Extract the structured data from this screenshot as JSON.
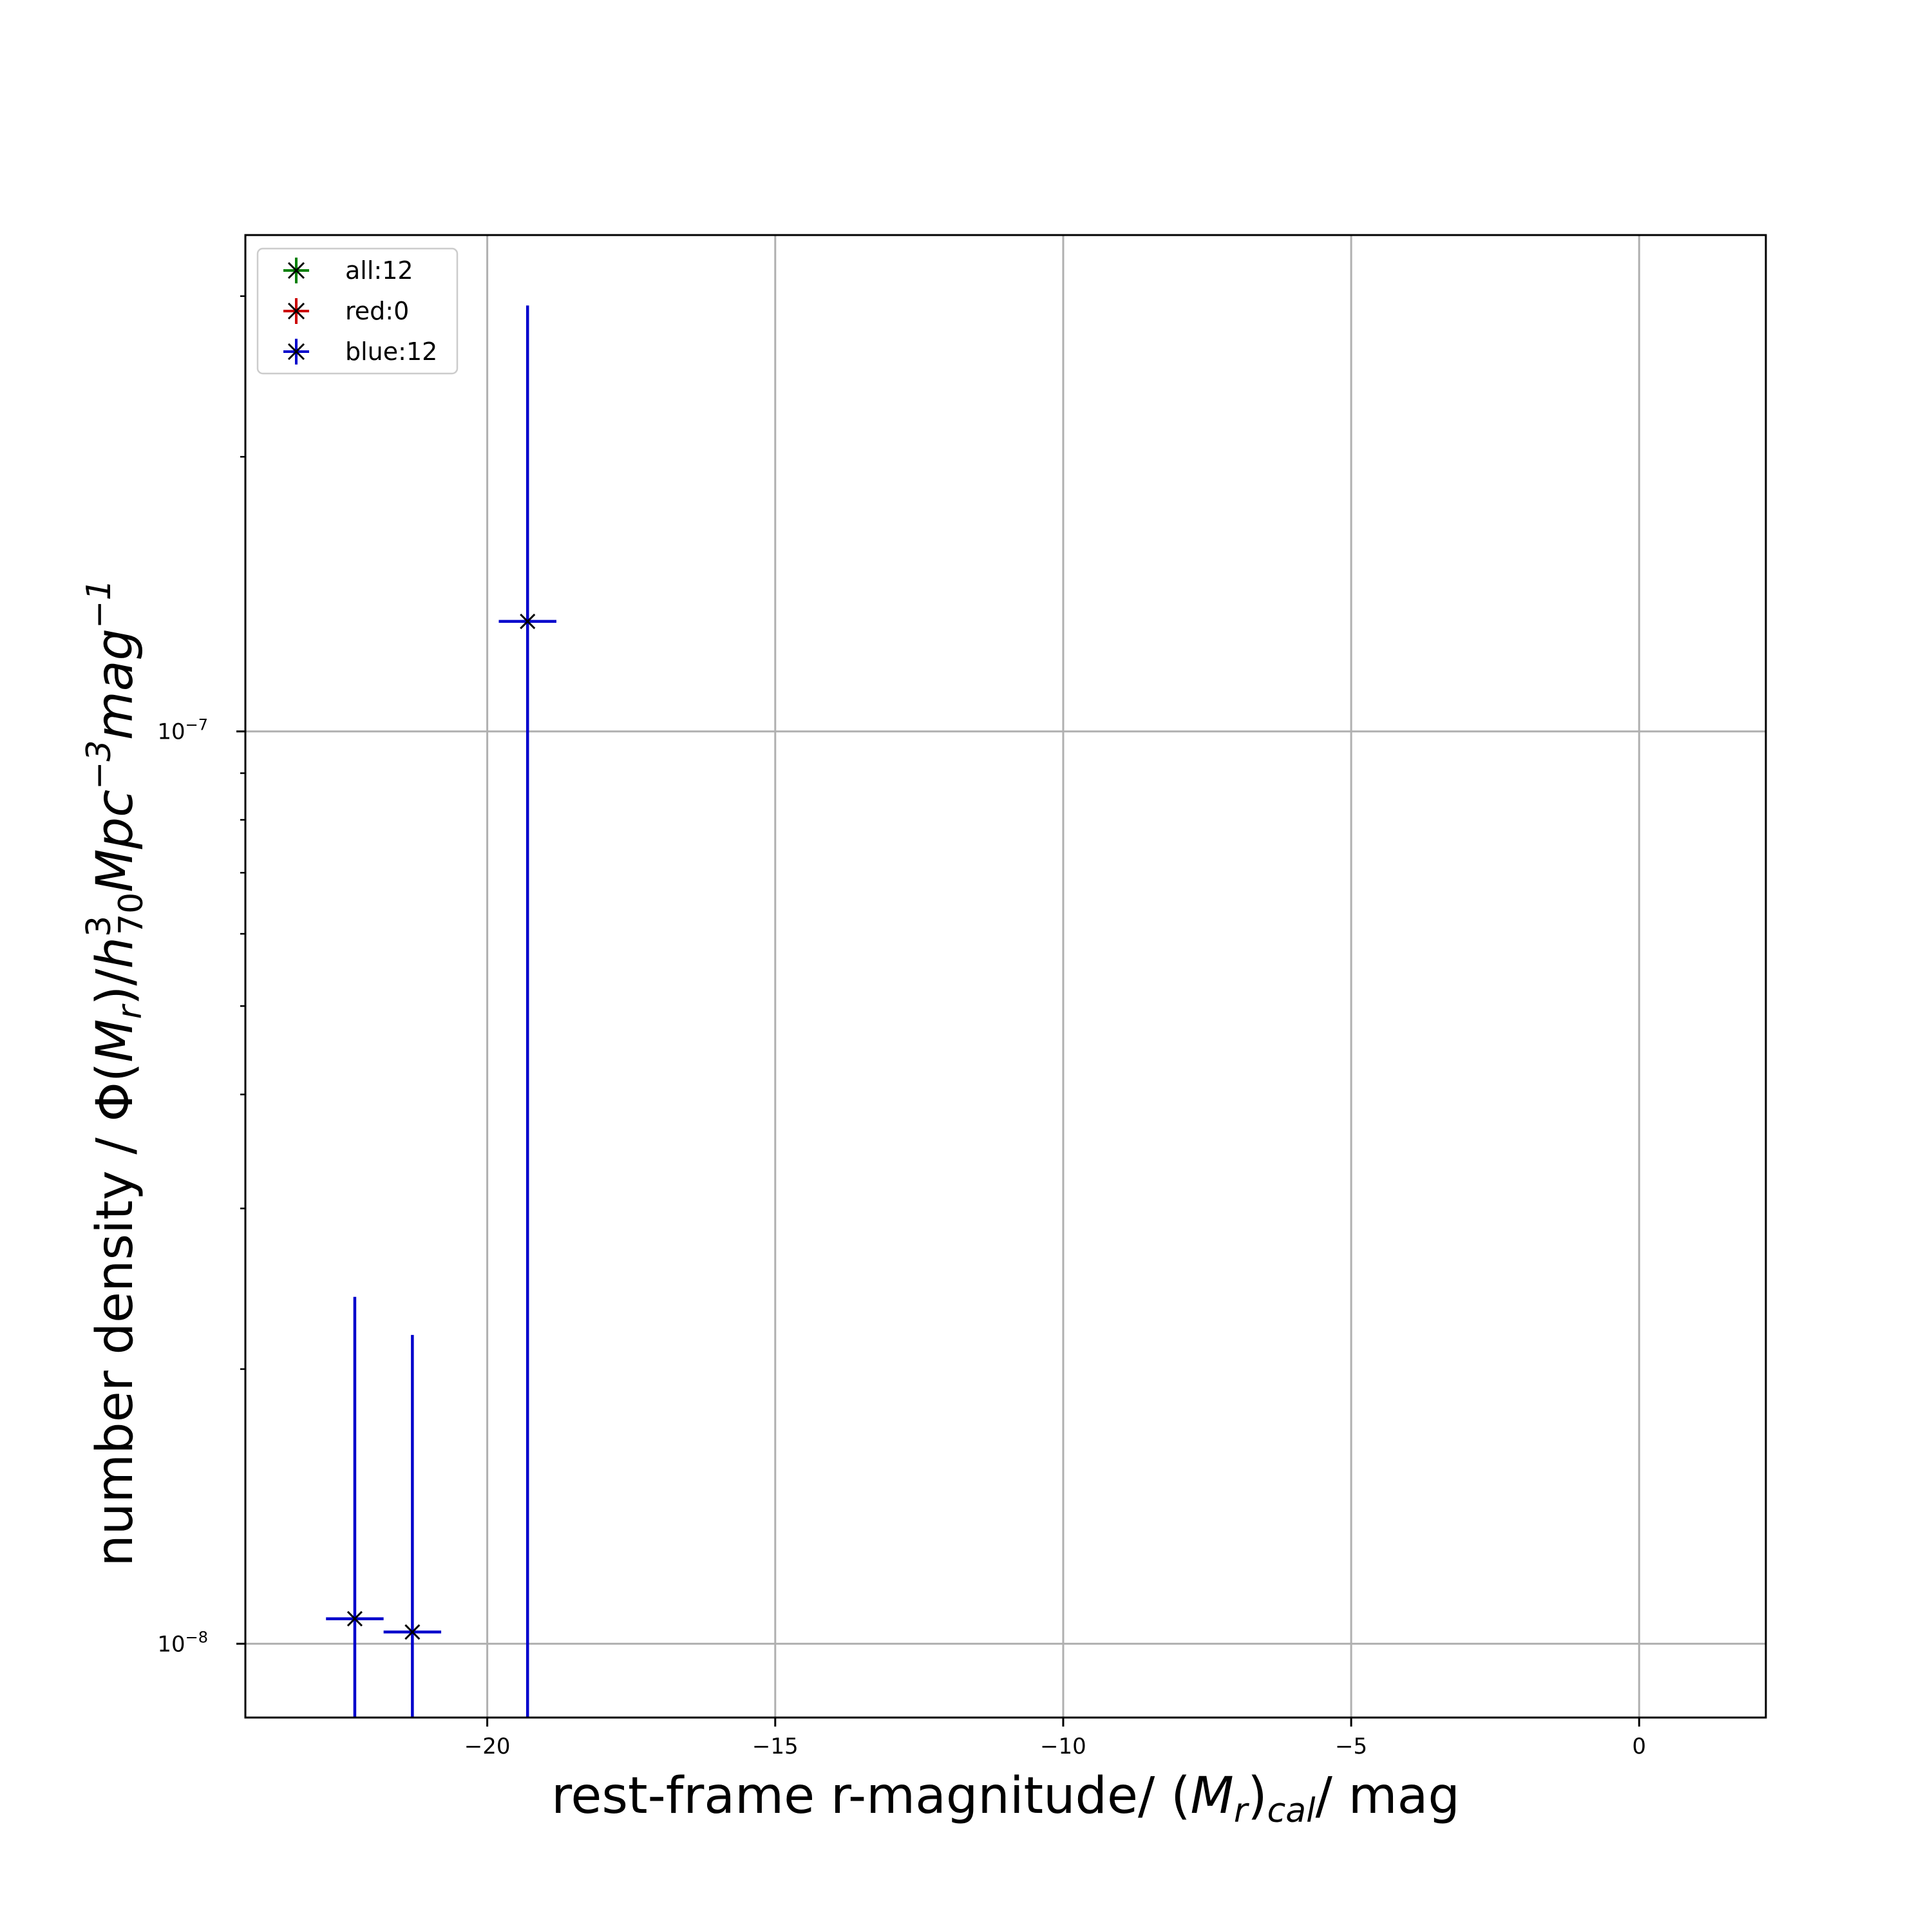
{
  "chart_data": {
    "type": "scatter",
    "title": "",
    "xlabel": {
      "prefix": "rest-frame r-magnitude/ (",
      "main": "M",
      "sub1": "r",
      "mid": ")",
      "sub2": "cal",
      "suffix": "/ mag"
    },
    "ylabel": {
      "prefix": "number density / Φ(",
      "m": "M",
      "m_sub": "r",
      "mid": ")/",
      "h": "h",
      "h_sup": "3",
      "h_sub": "70",
      "mpc": "Mpc",
      "mpc_sup": "−3",
      "mag": "mag",
      "mag_sup": "−1"
    },
    "xlim": [
      -24.2,
      2.2
    ],
    "ylim": [
      8.3e-09,
      3.5e-07
    ],
    "yscale": "log",
    "grid": true,
    "x_ticks": [
      -20,
      -15,
      -10,
      -5,
      0
    ],
    "x_tick_labels": [
      "−20",
      "−15",
      "−10",
      "−5",
      "0"
    ],
    "y_ticks": [
      1e-08,
      1e-07
    ],
    "y_tick_labels": [
      {
        "base": "10",
        "exp": "−8"
      },
      {
        "base": "10",
        "exp": "−7"
      }
    ],
    "y_minor_ticks": [
      2e-08,
      3e-08,
      4e-08,
      5e-08,
      6e-08,
      7e-08,
      8e-08,
      9e-08,
      2e-07,
      3e-07
    ],
    "legend_position": "top-left",
    "series": [
      {
        "name": "all:12",
        "color": "#008000",
        "points": []
      },
      {
        "name": "red:0",
        "color": "#cc0000",
        "points": []
      },
      {
        "name": "blue:12",
        "color": "#0000cc",
        "marker_color": "#000000",
        "points": [
          {
            "x": -22.3,
            "y": 1.065e-08,
            "xerr": 0.5,
            "ylow": 8.3e-09,
            "yhigh": 2.4e-08
          },
          {
            "x": -21.3,
            "y": 1.03e-08,
            "xerr": 0.5,
            "ylow": 8.3e-09,
            "yhigh": 2.18e-08
          },
          {
            "x": -19.3,
            "y": 1.32e-07,
            "xerr": 0.5,
            "ylow": 8.3e-09,
            "yhigh": 2.93e-07
          }
        ]
      }
    ]
  }
}
